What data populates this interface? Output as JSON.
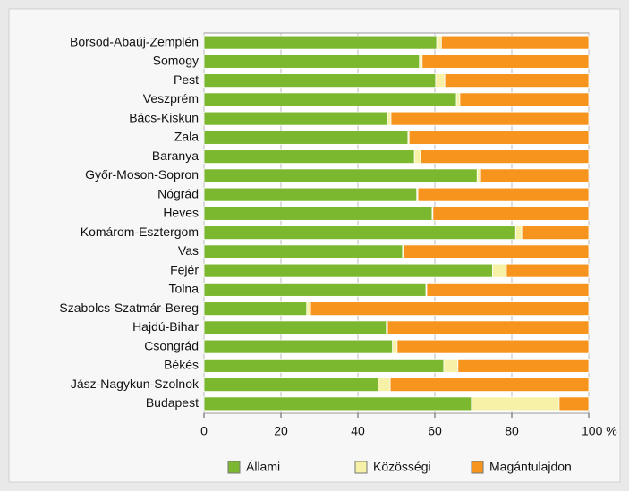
{
  "chart_data": {
    "type": "stacked_barh",
    "categories": [
      "Borsod-Abaúj-Zemplén",
      "Somogy",
      "Pest",
      "Veszprém",
      "Bács-Kiskun",
      "Zala",
      "Baranya",
      "Győr-Moson-Sopron",
      "Nógrád",
      "Heves",
      "Komárom-Esztergom",
      "Vas",
      "Fejér",
      "Tolna",
      "Szabolcs-Szatmár-Bereg",
      "Hajdú-Bihar",
      "Csongrád",
      "Békés",
      "Jász-Nagykun-Szolnok",
      "Budapest"
    ],
    "series": [
      {
        "name": "Állami",
        "color": "#7cb82f",
        "values": [
          60.5,
          56,
          60.2,
          65.6,
          47.7,
          53,
          54.7,
          71,
          55.3,
          59.3,
          81,
          51.6,
          75,
          57.7,
          26.7,
          47.4,
          49,
          62.3,
          45.3,
          69.5
        ]
      },
      {
        "name": "Közösségi",
        "color": "#f6f1a6",
        "values": [
          1.2,
          0.7,
          2.4,
          0.9,
          0.9,
          0.3,
          1.6,
          0.9,
          0.3,
          0.2,
          1.6,
          0.3,
          3.6,
          0.2,
          1,
          0.3,
          1.2,
          3.7,
          3.1,
          22.8
        ]
      },
      {
        "name": "Magántulajdon",
        "color": "#f7941d",
        "values": [
          38.3,
          43.3,
          37.4,
          33.5,
          51.4,
          46.7,
          43.7,
          28.1,
          44.4,
          40.5,
          17.4,
          48.1,
          21.4,
          42.1,
          72.3,
          52.3,
          49.8,
          34,
          51.6,
          7.7
        ]
      }
    ],
    "xlim": [
      0,
      100
    ],
    "xticks": [
      0,
      20,
      40,
      60,
      80,
      {
        "value": 100,
        "label": "100 %"
      }
    ],
    "grid": true,
    "legend": "bottom"
  }
}
